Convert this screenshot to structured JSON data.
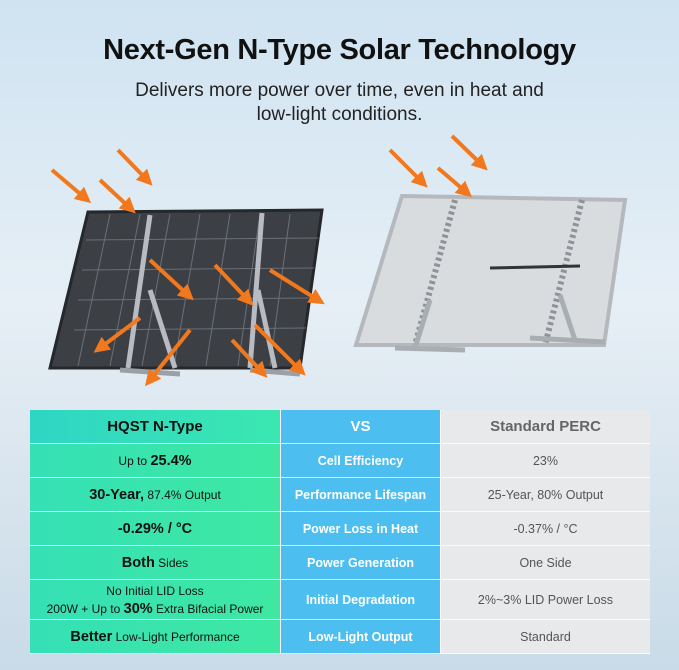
{
  "header": {
    "title": "Next-Gen N-Type Solar Technology",
    "subtitle": [
      "Delivers more power over time, even in heat and",
      "low-light conditions."
    ]
  },
  "table": {
    "columns": [
      "HQST N-Type",
      "VS",
      "Standard PERC"
    ],
    "rows": [
      {
        "hqst": [
          "Up to",
          "25.4%"
        ],
        "metric": "Cell Efficiency",
        "perc": "23%"
      },
      {
        "hqst": [
          "30-Year,",
          "87.4% Output"
        ],
        "metric": "Performance Lifespan",
        "perc": "25-Year, 80% Output"
      },
      {
        "hqst": [
          "-0.29% / °C"
        ],
        "metric": "Power Loss in Heat",
        "perc": "-0.37% / °C"
      },
      {
        "hqst": [
          "Both",
          "Sides"
        ],
        "metric": "Power Generation",
        "perc": "One Side"
      },
      {
        "hqst": [
          "No Initial LID Loss",
          "200W + Up to",
          "30%",
          "Extra Bifacial Power"
        ],
        "metric": "Initial Degradation",
        "perc": "2%~3% LID Power Loss"
      },
      {
        "hqst": [
          "Better",
          "Low-Light Performance"
        ],
        "metric": "Low-Light Output",
        "perc": "Standard"
      }
    ]
  }
}
